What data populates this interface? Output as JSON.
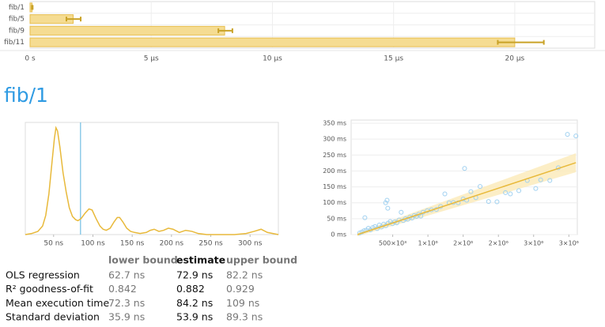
{
  "heading": "fib/1",
  "chart_data": [
    {
      "type": "bar",
      "orientation": "horizontal",
      "categories": [
        "fib/1",
        "fib/5",
        "fib/9",
        "fib/11"
      ],
      "values": [
        0.084,
        1.78,
        8.03,
        20.0
      ],
      "error_low": [
        0.072,
        1.5,
        7.77,
        19.3
      ],
      "error_high": [
        0.109,
        2.09,
        8.35,
        21.2
      ],
      "color": "#f5dc92",
      "error_color": "#c9a227",
      "xlim": [
        0,
        23.3
      ],
      "xticks": [
        {
          "value": 0,
          "label": "0 s"
        },
        {
          "value": 5,
          "label": "5 µs"
        },
        {
          "value": 10,
          "label": "10 µs"
        },
        {
          "value": 15,
          "label": "15 µs"
        },
        {
          "value": 20,
          "label": "20 µs"
        }
      ],
      "grid": true
    },
    {
      "type": "line",
      "x": [
        14,
        22,
        30,
        36,
        40,
        44,
        48,
        51,
        53,
        55,
        58,
        62,
        66,
        70,
        74,
        78,
        81,
        85,
        90,
        95,
        99,
        104,
        109,
        113,
        117,
        122,
        127,
        131,
        134,
        138,
        143,
        148,
        153,
        160,
        168,
        173,
        178,
        184,
        190,
        196,
        202,
        210,
        218,
        226,
        234,
        245,
        260,
        280,
        295,
        305,
        314,
        322,
        336
      ],
      "values": [
        0,
        0.01,
        0.03,
        0.08,
        0.18,
        0.38,
        0.68,
        0.9,
        1.0,
        0.97,
        0.82,
        0.58,
        0.4,
        0.25,
        0.17,
        0.14,
        0.13,
        0.15,
        0.2,
        0.24,
        0.23,
        0.15,
        0.08,
        0.05,
        0.04,
        0.06,
        0.12,
        0.16,
        0.16,
        0.12,
        0.06,
        0.03,
        0.02,
        0.01,
        0.02,
        0.04,
        0.05,
        0.03,
        0.04,
        0.06,
        0.05,
        0.02,
        0.04,
        0.03,
        0.01,
        0,
        0,
        0,
        0.01,
        0.03,
        0.05,
        0.02,
        0
      ],
      "mean_line": 84.2,
      "color": "#e8b93a",
      "mean_color": "#8ecbe8",
      "xlim": [
        14,
        336
      ],
      "ylim": [
        0,
        1.05
      ],
      "xticks": [
        {
          "value": 50,
          "label": "50 ns"
        },
        {
          "value": 100,
          "label": "100 ns"
        },
        {
          "value": 150,
          "label": "150 ns"
        },
        {
          "value": 200,
          "label": "200 ns"
        },
        {
          "value": 250,
          "label": "250 ns"
        },
        {
          "value": 300,
          "label": "300 ns"
        }
      ]
    },
    {
      "type": "scatter",
      "x": [
        31000,
        62000,
        93000,
        124000,
        155000,
        186000,
        217000,
        248000,
        279000,
        310000,
        341000,
        372000,
        403000,
        434000,
        465000,
        496000,
        527000,
        558000,
        589000,
        620000,
        651000,
        682000,
        713000,
        744000,
        775000,
        806000,
        837000,
        868000,
        899000,
        930000,
        990000,
        1050000,
        1120000,
        1180000,
        1240000,
        1300000,
        1360000,
        1430000,
        1500000,
        1550000,
        1610000,
        1680000,
        1740000,
        1860000,
        1980000,
        2100000,
        2170000,
        2290000,
        2410000,
        2530000,
        2600000,
        2730000,
        2850000,
        2980000,
        3100000,
        420000,
        400000,
        430000,
        105000,
        1520000
      ],
      "values": [
        5,
        8,
        12,
        14,
        20,
        15,
        22,
        25,
        19,
        30,
        24,
        33,
        28,
        36,
        41,
        34,
        40,
        37,
        46,
        70,
        44,
        50,
        48,
        55,
        52,
        60,
        57,
        64,
        58,
        70,
        75,
        78,
        79,
        88,
        128,
        100,
        101,
        100,
        112,
        108,
        135,
        116,
        151,
        104,
        103,
        132,
        128,
        138,
        170,
        145,
        172,
        170,
        210,
        315,
        310,
        108,
        100,
        83,
        53,
        208
      ],
      "regression": {
        "x": [
          0,
          3100000
        ],
        "y": [
          0,
          226
        ]
      },
      "color": "#9fd0f0",
      "line_color": "#e8b93a",
      "xlim": [
        -90000,
        3120000
      ],
      "ylim": [
        0,
        360
      ],
      "xticks": [
        {
          "value": 500000,
          "label": "500×10³"
        },
        {
          "value": 1000000,
          "label": "1×10⁶"
        },
        {
          "value": 1500000,
          "label": "2×10⁶"
        },
        {
          "value": 2000000,
          "label": "2×10⁶"
        },
        {
          "value": 2500000,
          "label": "3×10⁶"
        },
        {
          "value": 3000000,
          "label": "3×10⁶"
        }
      ],
      "yticks": [
        {
          "value": 0,
          "label": "0 ms"
        },
        {
          "value": 50,
          "label": "50 ms"
        },
        {
          "value": 100,
          "label": "100 ms"
        },
        {
          "value": 150,
          "label": "150 ms"
        },
        {
          "value": 200,
          "label": "200 ms"
        },
        {
          "value": 250,
          "label": "250 ms"
        },
        {
          "value": 300,
          "label": "300 ms"
        },
        {
          "value": 350,
          "label": "350 ms"
        }
      ],
      "grid": true
    }
  ],
  "table": {
    "columns": [
      "lower bound",
      "estimate",
      "upper bound"
    ],
    "rows": [
      [
        "OLS regression",
        "62.7 ns",
        "72.9 ns",
        "82.2 ns"
      ],
      [
        "R² goodness-of-fit",
        "0.842",
        "0.882",
        "0.929"
      ],
      [
        "Mean execution time",
        "72.3 ns",
        "84.2 ns",
        "109 ns"
      ],
      [
        "Standard deviation",
        "35.9 ns",
        "53.9 ns",
        "89.3 ns"
      ]
    ]
  }
}
